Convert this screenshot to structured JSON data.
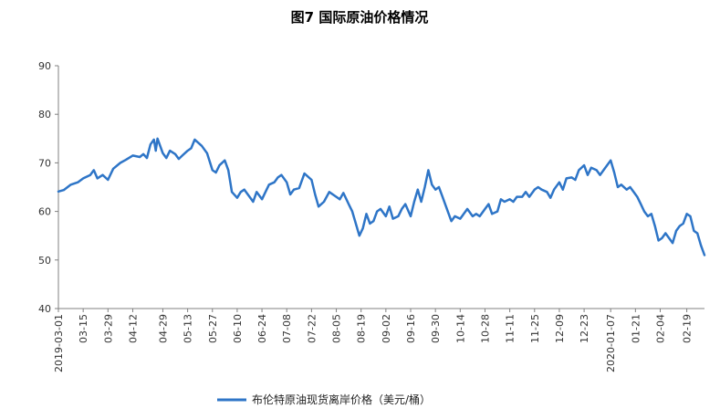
{
  "chart_data": {
    "type": "line",
    "title": "图7  国际原油价格情况",
    "xlabel": "",
    "ylabel": "",
    "ylim": [
      40,
      90
    ],
    "yticks": [
      40,
      50,
      60,
      70,
      80,
      90
    ],
    "grid": false,
    "legend_position": "bottom",
    "colors": {
      "series": "#2E75C7",
      "axis": "#808080"
    },
    "x_ticks": [
      "2019-03-01",
      "03-15",
      "03-29",
      "04-12",
      "04-29",
      "05-13",
      "05-27",
      "06-10",
      "06-24",
      "07-08",
      "07-22",
      "08-05",
      "08-19",
      "09-02",
      "09-16",
      "09-30",
      "10-14",
      "10-28",
      "11-11",
      "11-25",
      "12-09",
      "12-23",
      "2020-01-07",
      "01-21",
      "02-04",
      "02-19"
    ],
    "x_tick_dates": [
      "2019-03-01",
      "2019-03-15",
      "2019-03-29",
      "2019-04-12",
      "2019-04-29",
      "2019-05-13",
      "2019-05-27",
      "2019-06-10",
      "2019-06-24",
      "2019-07-08",
      "2019-07-22",
      "2019-08-05",
      "2019-08-19",
      "2019-09-02",
      "2019-09-16",
      "2019-09-30",
      "2019-10-14",
      "2019-10-28",
      "2019-11-11",
      "2019-11-25",
      "2019-12-09",
      "2019-12-23",
      "2020-01-07",
      "2020-01-21",
      "2020-02-04",
      "2020-02-19"
    ],
    "series": [
      {
        "name": "布伦特原油现货离岸价格（美元/桶）",
        "points": [
          [
            "2019-03-01",
            64.1
          ],
          [
            "2019-03-04",
            64.4
          ],
          [
            "2019-03-08",
            65.5
          ],
          [
            "2019-03-12",
            66.0
          ],
          [
            "2019-03-15",
            66.8
          ],
          [
            "2019-03-19",
            67.5
          ],
          [
            "2019-03-21",
            68.5
          ],
          [
            "2019-03-23",
            66.8
          ],
          [
            "2019-03-26",
            67.5
          ],
          [
            "2019-03-29",
            66.5
          ],
          [
            "2019-04-01",
            68.8
          ],
          [
            "2019-04-05",
            70.0
          ],
          [
            "2019-04-08",
            70.6
          ],
          [
            "2019-04-12",
            71.5
          ],
          [
            "2019-04-16",
            71.2
          ],
          [
            "2019-04-18",
            71.8
          ],
          [
            "2019-04-20",
            71.0
          ],
          [
            "2019-04-22",
            73.8
          ],
          [
            "2019-04-24",
            74.8
          ],
          [
            "2019-04-25",
            72.5
          ],
          [
            "2019-04-26",
            75.0
          ],
          [
            "2019-04-29",
            72.0
          ],
          [
            "2019-05-01",
            71.0
          ],
          [
            "2019-05-03",
            72.5
          ],
          [
            "2019-05-06",
            71.8
          ],
          [
            "2019-05-08",
            70.8
          ],
          [
            "2019-05-10",
            71.5
          ],
          [
            "2019-05-13",
            72.5
          ],
          [
            "2019-05-15",
            73.0
          ],
          [
            "2019-05-17",
            74.8
          ],
          [
            "2019-05-21",
            73.5
          ],
          [
            "2019-05-24",
            72.0
          ],
          [
            "2019-05-27",
            68.5
          ],
          [
            "2019-05-29",
            68.0
          ],
          [
            "2019-05-31",
            69.5
          ],
          [
            "2019-06-03",
            70.5
          ],
          [
            "2019-06-05",
            68.5
          ],
          [
            "2019-06-07",
            64.0
          ],
          [
            "2019-06-10",
            62.8
          ],
          [
            "2019-06-12",
            64.0
          ],
          [
            "2019-06-14",
            64.5
          ],
          [
            "2019-06-17",
            63.0
          ],
          [
            "2019-06-19",
            62.0
          ],
          [
            "2019-06-21",
            64.0
          ],
          [
            "2019-06-24",
            62.5
          ],
          [
            "2019-06-26",
            64.0
          ],
          [
            "2019-06-28",
            65.5
          ],
          [
            "2019-07-01",
            66.0
          ],
          [
            "2019-07-03",
            67.0
          ],
          [
            "2019-07-05",
            67.5
          ],
          [
            "2019-07-08",
            66.0
          ],
          [
            "2019-07-10",
            63.5
          ],
          [
            "2019-07-12",
            64.5
          ],
          [
            "2019-07-15",
            64.8
          ],
          [
            "2019-07-18",
            67.8
          ],
          [
            "2019-07-22",
            66.5
          ],
          [
            "2019-07-24",
            63.5
          ],
          [
            "2019-07-26",
            61.0
          ],
          [
            "2019-07-29",
            62.0
          ],
          [
            "2019-08-01",
            64.0
          ],
          [
            "2019-08-05",
            63.0
          ],
          [
            "2019-08-07",
            62.5
          ],
          [
            "2019-08-09",
            63.8
          ],
          [
            "2019-08-12",
            61.5
          ],
          [
            "2019-08-14",
            60.0
          ],
          [
            "2019-08-16",
            57.5
          ],
          [
            "2019-08-18",
            55.0
          ],
          [
            "2019-08-20",
            56.5
          ],
          [
            "2019-08-22",
            59.5
          ],
          [
            "2019-08-24",
            57.5
          ],
          [
            "2019-08-26",
            58.0
          ],
          [
            "2019-08-28",
            60.0
          ],
          [
            "2019-08-30",
            60.5
          ],
          [
            "2019-09-02",
            59.0
          ],
          [
            "2019-09-04",
            61.0
          ],
          [
            "2019-09-06",
            58.5
          ],
          [
            "2019-09-09",
            59.0
          ],
          [
            "2019-09-11",
            60.5
          ],
          [
            "2019-09-13",
            61.5
          ],
          [
            "2019-09-16",
            59.0
          ],
          [
            "2019-09-18",
            62.0
          ],
          [
            "2019-09-20",
            64.5
          ],
          [
            "2019-09-22",
            62.0
          ],
          [
            "2019-09-24",
            65.0
          ],
          [
            "2019-09-26",
            68.5
          ],
          [
            "2019-09-28",
            65.5
          ],
          [
            "2019-09-30",
            64.5
          ],
          [
            "2019-10-02",
            65.0
          ],
          [
            "2019-10-04",
            63.0
          ],
          [
            "2019-10-07",
            60.0
          ],
          [
            "2019-10-09",
            58.0
          ],
          [
            "2019-10-11",
            59.0
          ],
          [
            "2019-10-14",
            58.5
          ],
          [
            "2019-10-16",
            59.5
          ],
          [
            "2019-10-18",
            60.5
          ],
          [
            "2019-10-21",
            59.0
          ],
          [
            "2019-10-23",
            59.5
          ],
          [
            "2019-10-25",
            59.0
          ],
          [
            "2019-10-28",
            60.5
          ],
          [
            "2019-10-30",
            61.5
          ],
          [
            "2019-11-01",
            59.5
          ],
          [
            "2019-11-04",
            60.0
          ],
          [
            "2019-11-06",
            62.5
          ],
          [
            "2019-11-08",
            62.0
          ],
          [
            "2019-11-11",
            62.5
          ],
          [
            "2019-11-13",
            62.0
          ],
          [
            "2019-11-15",
            63.0
          ],
          [
            "2019-11-18",
            63.0
          ],
          [
            "2019-11-20",
            64.0
          ],
          [
            "2019-11-22",
            63.0
          ],
          [
            "2019-11-25",
            64.5
          ],
          [
            "2019-11-27",
            65.0
          ],
          [
            "2019-11-29",
            64.5
          ],
          [
            "2019-12-02",
            64.0
          ],
          [
            "2019-12-04",
            62.8
          ],
          [
            "2019-12-06",
            64.5
          ],
          [
            "2019-12-09",
            66.0
          ],
          [
            "2019-12-11",
            64.5
          ],
          [
            "2019-12-13",
            66.8
          ],
          [
            "2019-12-16",
            67.0
          ],
          [
            "2019-12-18",
            66.5
          ],
          [
            "2019-12-20",
            68.5
          ],
          [
            "2019-12-23",
            69.5
          ],
          [
            "2019-12-25",
            67.5
          ],
          [
            "2019-12-27",
            69.0
          ],
          [
            "2019-12-30",
            68.5
          ],
          [
            "2020-01-01",
            67.5
          ],
          [
            "2020-01-03",
            68.5
          ],
          [
            "2020-01-07",
            70.5
          ],
          [
            "2020-01-09",
            68.0
          ],
          [
            "2020-01-11",
            65.0
          ],
          [
            "2020-01-13",
            65.5
          ],
          [
            "2020-01-16",
            64.5
          ],
          [
            "2020-01-18",
            65.0
          ],
          [
            "2020-01-20",
            64.0
          ],
          [
            "2020-01-22",
            63.0
          ],
          [
            "2020-01-24",
            61.5
          ],
          [
            "2020-01-26",
            60.0
          ],
          [
            "2020-01-28",
            59.0
          ],
          [
            "2020-01-30",
            59.5
          ],
          [
            "2020-02-01",
            57.0
          ],
          [
            "2020-02-03",
            54.0
          ],
          [
            "2020-02-05",
            54.5
          ],
          [
            "2020-02-07",
            55.5
          ],
          [
            "2020-02-09",
            54.5
          ],
          [
            "2020-02-11",
            53.5
          ],
          [
            "2020-02-13",
            56.0
          ],
          [
            "2020-02-15",
            57.0
          ],
          [
            "2020-02-17",
            57.5
          ],
          [
            "2020-02-19",
            59.5
          ],
          [
            "2020-02-21",
            59.0
          ],
          [
            "2020-02-23",
            56.0
          ],
          [
            "2020-02-25",
            55.5
          ],
          [
            "2020-02-27",
            53.0
          ],
          [
            "2020-02-29",
            51.0
          ]
        ]
      }
    ]
  }
}
